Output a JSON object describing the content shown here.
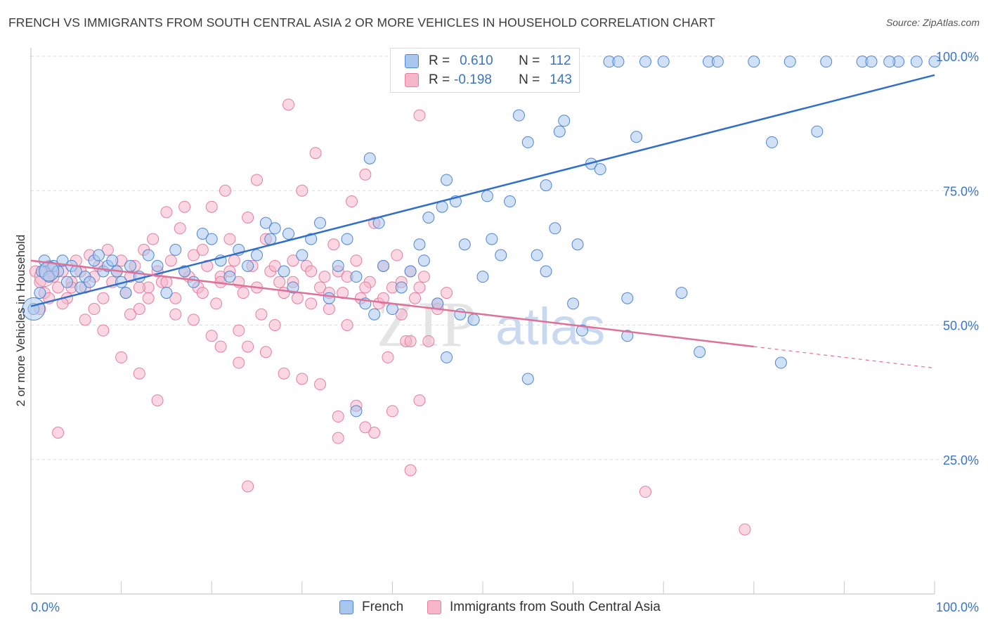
{
  "header": {
    "title": "FRENCH VS IMMIGRANTS FROM SOUTH CENTRAL ASIA 2 OR MORE VEHICLES IN HOUSEHOLD CORRELATION CHART",
    "source": "Source: ZipAtlas.com"
  },
  "watermark": {
    "zip": "ZIP",
    "atlas": "atlas"
  },
  "legend": {
    "r_label": "R =",
    "n_label": "N =",
    "french": {
      "r": "0.610",
      "n": "112"
    },
    "immigrants": {
      "r": "-0.198",
      "n": "143"
    }
  },
  "bottom_legend": {
    "french": "French",
    "immigrants": "Immigrants from South Central Asia"
  },
  "colors": {
    "french_fill": "#a9c6ee",
    "french_stroke": "#4f86d0",
    "french_line": "#2f6fc9",
    "imm_fill": "#f6b6ca",
    "imm_stroke": "#e57fa0",
    "imm_line": "#e07098",
    "tick_label": "#3a74c8",
    "grid": "#dcdcdc"
  },
  "chart_data": {
    "type": "scatter",
    "title": "FRENCH VS IMMIGRANTS FROM SOUTH CENTRAL ASIA 2 OR MORE VEHICLES IN HOUSEHOLD CORRELATION CHART",
    "xlabel": "",
    "ylabel": "2 or more Vehicles in Household",
    "xlim": [
      0,
      100
    ],
    "ylim": [
      0,
      105
    ],
    "x_tick_labels": [
      "0.0%",
      "100.0%"
    ],
    "y_ticks": [
      25,
      50,
      75,
      100
    ],
    "y_tick_labels": [
      "25.0%",
      "50.0%",
      "75.0%",
      "100.0%"
    ],
    "grid": true,
    "legend_position": "top-center",
    "series": [
      {
        "name": "French",
        "r": 0.61,
        "n": 112,
        "trend": {
          "x": [
            0,
            100
          ],
          "y": [
            53.5,
            96.5
          ]
        },
        "points": [
          [
            0.3,
            53
          ],
          [
            1,
            56
          ],
          [
            1.2,
            60
          ],
          [
            1.5,
            62
          ],
          [
            2,
            59
          ],
          [
            2.5,
            61
          ],
          [
            3,
            60
          ],
          [
            3.5,
            62
          ],
          [
            4,
            58
          ],
          [
            4.5,
            61
          ],
          [
            5,
            60
          ],
          [
            5.5,
            57
          ],
          [
            6,
            59
          ],
          [
            6.5,
            58
          ],
          [
            7,
            62
          ],
          [
            7.5,
            63
          ],
          [
            8,
            60
          ],
          [
            8.5,
            61
          ],
          [
            9,
            62
          ],
          [
            9.5,
            60
          ],
          [
            10,
            58
          ],
          [
            10.5,
            56
          ],
          [
            11,
            61
          ],
          [
            12,
            59
          ],
          [
            13,
            63
          ],
          [
            14,
            61
          ],
          [
            15,
            56
          ],
          [
            16,
            64
          ],
          [
            17,
            60
          ],
          [
            18,
            58
          ],
          [
            19,
            67
          ],
          [
            20,
            66
          ],
          [
            21,
            62
          ],
          [
            22,
            59
          ],
          [
            23,
            64
          ],
          [
            24,
            61
          ],
          [
            25,
            63
          ],
          [
            26,
            69
          ],
          [
            26.5,
            66
          ],
          [
            27,
            68
          ],
          [
            28,
            60
          ],
          [
            28.5,
            67
          ],
          [
            29,
            57
          ],
          [
            30,
            63
          ],
          [
            31,
            66
          ],
          [
            32,
            69
          ],
          [
            33,
            55
          ],
          [
            34,
            61
          ],
          [
            35,
            66
          ],
          [
            36,
            59
          ],
          [
            37,
            54
          ],
          [
            37.5,
            81
          ],
          [
            38,
            52
          ],
          [
            38.5,
            69
          ],
          [
            39,
            61
          ],
          [
            40,
            53
          ],
          [
            41,
            57
          ],
          [
            42,
            60
          ],
          [
            43,
            65
          ],
          [
            43.5,
            62
          ],
          [
            44,
            70
          ],
          [
            45,
            54
          ],
          [
            45.5,
            72
          ],
          [
            46,
            77
          ],
          [
            47,
            73
          ],
          [
            47.5,
            52
          ],
          [
            48,
            65
          ],
          [
            49,
            51
          ],
          [
            50,
            59
          ],
          [
            50.5,
            74
          ],
          [
            51,
            66
          ],
          [
            52,
            63
          ],
          [
            53,
            73
          ],
          [
            54,
            89
          ],
          [
            55,
            84
          ],
          [
            56,
            63
          ],
          [
            57,
            76
          ],
          [
            58,
            68
          ],
          [
            58.5,
            86
          ],
          [
            59,
            88
          ],
          [
            60,
            54
          ],
          [
            61,
            49
          ],
          [
            62,
            80
          ],
          [
            63,
            79
          ],
          [
            64,
            99
          ],
          [
            65,
            99
          ],
          [
            66,
            48
          ],
          [
            67,
            85
          ],
          [
            68,
            99
          ],
          [
            70,
            99
          ],
          [
            72,
            56
          ],
          [
            75,
            99
          ],
          [
            76,
            99
          ],
          [
            80,
            99
          ],
          [
            82,
            84
          ],
          [
            84,
            99
          ],
          [
            87,
            86
          ],
          [
            88,
            99
          ],
          [
            92,
            99
          ],
          [
            93,
            99
          ],
          [
            96,
            99
          ],
          [
            98,
            99
          ],
          [
            100,
            99
          ],
          [
            36,
            34
          ],
          [
            55,
            40
          ],
          [
            46,
            44
          ],
          [
            66,
            55
          ],
          [
            74,
            45
          ],
          [
            83,
            43
          ],
          [
            95,
            99
          ],
          [
            57,
            60
          ],
          [
            60.5,
            65
          ]
        ]
      },
      {
        "name": "Immigrants from South Central Asia",
        "r": -0.198,
        "n": 143,
        "trend": {
          "x": [
            0,
            80
          ],
          "y": [
            62,
            46
          ]
        },
        "trend_dashed": {
          "x": [
            80,
            100
          ],
          "y": [
            46,
            42
          ]
        },
        "points": [
          [
            0.5,
            60
          ],
          [
            1,
            58
          ],
          [
            1.5,
            56
          ],
          [
            2,
            61
          ],
          [
            2.5,
            59
          ],
          [
            3,
            57
          ],
          [
            3.5,
            60
          ],
          [
            4,
            55
          ],
          [
            4.5,
            58
          ],
          [
            5,
            62
          ],
          [
            5.5,
            60
          ],
          [
            6,
            57
          ],
          [
            6.5,
            63
          ],
          [
            7,
            59
          ],
          [
            7.5,
            61
          ],
          [
            8,
            55
          ],
          [
            8.5,
            64
          ],
          [
            9,
            58
          ],
          [
            9.5,
            60
          ],
          [
            10,
            62
          ],
          [
            10.5,
            56
          ],
          [
            11,
            59
          ],
          [
            11.5,
            61
          ],
          [
            12,
            53
          ],
          [
            12.5,
            64
          ],
          [
            13,
            57
          ],
          [
            13.5,
            66
          ],
          [
            14,
            60
          ],
          [
            14.5,
            58
          ],
          [
            15,
            71
          ],
          [
            15.5,
            62
          ],
          [
            16,
            55
          ],
          [
            16.5,
            68
          ],
          [
            17,
            72
          ],
          [
            17.5,
            59
          ],
          [
            18,
            63
          ],
          [
            18.5,
            57
          ],
          [
            19,
            64
          ],
          [
            19.5,
            61
          ],
          [
            20,
            72
          ],
          [
            20.5,
            54
          ],
          [
            21,
            59
          ],
          [
            21.5,
            75
          ],
          [
            22,
            66
          ],
          [
            22.5,
            62
          ],
          [
            23,
            58
          ],
          [
            23.5,
            56
          ],
          [
            24,
            70
          ],
          [
            24.5,
            61
          ],
          [
            25,
            77
          ],
          [
            25.5,
            52
          ],
          [
            26,
            66
          ],
          [
            26.5,
            60
          ],
          [
            27,
            50
          ],
          [
            27.5,
            58
          ],
          [
            28,
            56
          ],
          [
            28.5,
            91
          ],
          [
            29,
            62
          ],
          [
            29.5,
            55
          ],
          [
            30,
            75
          ],
          [
            30.5,
            61
          ],
          [
            31,
            54
          ],
          [
            31.5,
            82
          ],
          [
            32,
            57
          ],
          [
            32.5,
            59
          ],
          [
            33,
            53
          ],
          [
            33.5,
            65
          ],
          [
            34,
            60
          ],
          [
            34.5,
            56
          ],
          [
            35,
            50
          ],
          [
            35.5,
            73
          ],
          [
            36,
            62
          ],
          [
            36.5,
            55
          ],
          [
            37,
            78
          ],
          [
            37.5,
            58
          ],
          [
            38,
            69
          ],
          [
            38.5,
            54
          ],
          [
            39,
            61
          ],
          [
            39.5,
            44
          ],
          [
            40,
            57
          ],
          [
            40.5,
            63
          ],
          [
            41,
            52
          ],
          [
            41.5,
            47
          ],
          [
            42,
            60
          ],
          [
            42.5,
            55
          ],
          [
            43,
            89
          ],
          [
            43.5,
            59
          ],
          [
            44,
            47
          ],
          [
            45,
            53
          ],
          [
            46,
            56
          ],
          [
            3,
            30
          ],
          [
            12,
            41
          ],
          [
            14,
            36
          ],
          [
            20,
            48
          ],
          [
            23,
            43
          ],
          [
            28,
            41
          ],
          [
            30,
            40
          ],
          [
            32,
            39
          ],
          [
            34,
            33
          ],
          [
            36,
            35
          ],
          [
            38,
            30
          ],
          [
            40,
            34
          ],
          [
            42,
            23
          ],
          [
            24,
            46
          ],
          [
            26,
            45
          ],
          [
            18,
            51
          ],
          [
            16,
            52
          ],
          [
            10,
            44
          ],
          [
            8,
            49
          ],
          [
            6,
            51
          ],
          [
            1,
            53
          ],
          [
            2,
            55
          ],
          [
            3.5,
            54
          ],
          [
            4.5,
            57
          ],
          [
            7,
            53
          ],
          [
            11,
            52
          ],
          [
            13,
            55
          ],
          [
            15,
            58
          ],
          [
            17,
            60
          ],
          [
            19,
            56
          ],
          [
            21,
            58
          ],
          [
            22,
            60
          ],
          [
            25,
            57
          ],
          [
            27,
            61
          ],
          [
            29,
            58
          ],
          [
            31,
            60
          ],
          [
            33,
            56
          ],
          [
            35,
            59
          ],
          [
            37,
            57
          ],
          [
            39,
            55
          ],
          [
            41,
            58
          ],
          [
            43,
            57
          ],
          [
            45,
            54
          ],
          [
            21,
            46
          ],
          [
            23,
            49
          ],
          [
            42,
            47
          ],
          [
            43,
            36
          ],
          [
            24,
            20
          ],
          [
            34,
            29
          ],
          [
            37,
            31
          ],
          [
            68,
            19
          ],
          [
            79,
            12
          ],
          [
            12,
            57
          ]
        ]
      }
    ]
  }
}
